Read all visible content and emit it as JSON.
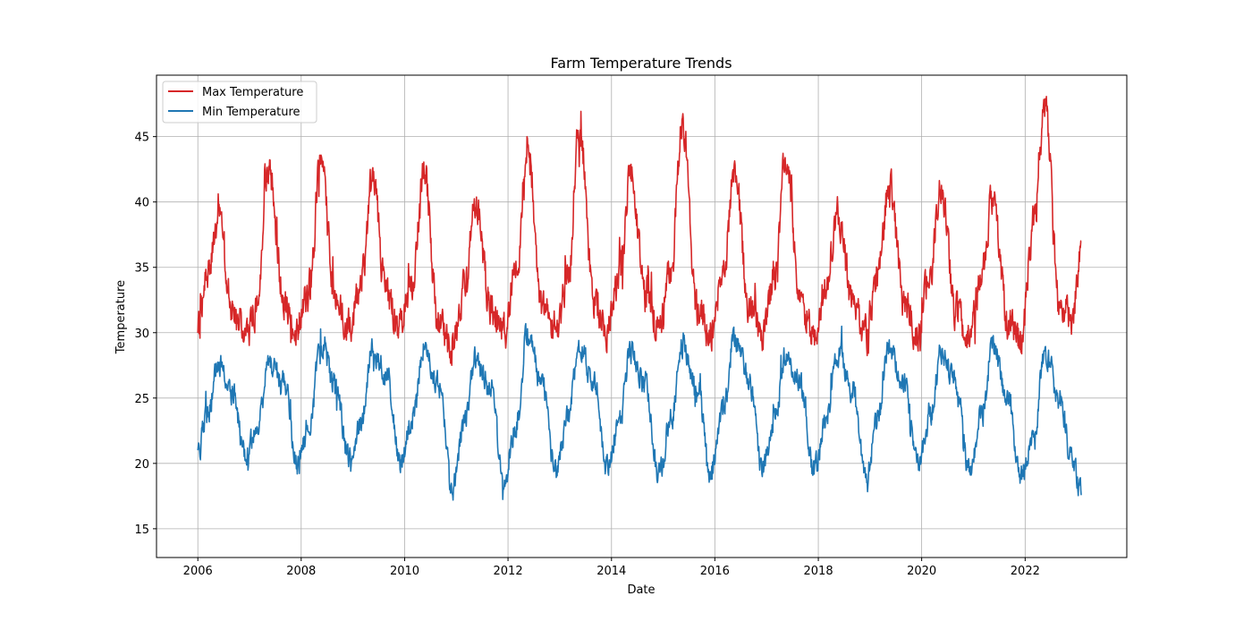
{
  "chart_data": {
    "type": "line",
    "title": "Farm Temperature Trends",
    "xlabel": "Date",
    "ylabel": "Temperature",
    "xlim": [
      "2005-03-15",
      "2023-12-20"
    ],
    "ylim": [
      12.8,
      49.7
    ],
    "x_ticks": [
      "2006",
      "2008",
      "2010",
      "2012",
      "2014",
      "2016",
      "2018",
      "2020",
      "2022"
    ],
    "y_ticks": [
      15,
      20,
      25,
      30,
      35,
      40,
      45
    ],
    "grid": true,
    "legend": "top-left",
    "x_range": [
      "2006-01-01",
      "2023-02-01"
    ],
    "series": [
      {
        "name": "Max Temperature",
        "color": "#d62728",
        "points": [
          [
            "2006-01-01",
            29.9
          ],
          [
            "2006-03-01",
            33.8
          ],
          [
            "2006-06-01",
            38.8
          ],
          [
            "2006-09-01",
            31.5
          ],
          [
            "2006-12-01",
            29.8
          ],
          [
            "2007-03-01",
            32.0
          ],
          [
            "2007-05-15",
            42.5
          ],
          [
            "2007-09-01",
            32.5
          ],
          [
            "2007-12-01",
            30.5
          ],
          [
            "2008-03-01",
            33.5
          ],
          [
            "2008-05-15",
            43.0
          ],
          [
            "2008-09-01",
            32.5
          ],
          [
            "2008-12-01",
            30.5
          ],
          [
            "2009-03-01",
            34.0
          ],
          [
            "2009-05-15",
            41.5
          ],
          [
            "2009-09-01",
            32.5
          ],
          [
            "2009-12-01",
            30.5
          ],
          [
            "2010-03-01",
            34.0
          ],
          [
            "2010-05-15",
            42.5
          ],
          [
            "2010-09-01",
            30.5
          ],
          [
            "2010-12-01",
            28.5
          ],
          [
            "2011-03-01",
            33.5
          ],
          [
            "2011-05-15",
            40.0
          ],
          [
            "2011-09-01",
            32.0
          ],
          [
            "2011-12-01",
            30.0
          ],
          [
            "2012-03-01",
            34.5
          ],
          [
            "2012-05-15",
            44.5
          ],
          [
            "2012-09-01",
            32.0
          ],
          [
            "2012-12-01",
            30.0
          ],
          [
            "2013-03-01",
            34.0
          ],
          [
            "2013-05-15",
            45.5
          ],
          [
            "2013-09-01",
            32.0
          ],
          [
            "2013-12-01",
            30.0
          ],
          [
            "2014-03-01",
            34.5
          ],
          [
            "2014-05-15",
            42.0
          ],
          [
            "2014-09-01",
            32.5
          ],
          [
            "2014-12-01",
            30.5
          ],
          [
            "2015-03-01",
            35.0
          ],
          [
            "2015-05-15",
            46.0
          ],
          [
            "2015-09-01",
            32.0
          ],
          [
            "2015-12-01",
            30.0
          ],
          [
            "2016-03-01",
            34.5
          ],
          [
            "2016-05-15",
            42.5
          ],
          [
            "2016-09-01",
            32.0
          ],
          [
            "2016-12-01",
            30.0
          ],
          [
            "2017-03-01",
            34.5
          ],
          [
            "2017-05-15",
            43.5
          ],
          [
            "2017-09-01",
            32.0
          ],
          [
            "2017-12-01",
            30.0
          ],
          [
            "2018-03-01",
            33.5
          ],
          [
            "2018-05-15",
            39.0
          ],
          [
            "2018-09-01",
            32.5
          ],
          [
            "2018-12-01",
            30.0
          ],
          [
            "2019-03-01",
            34.5
          ],
          [
            "2019-05-15",
            41.5
          ],
          [
            "2019-09-01",
            32.0
          ],
          [
            "2019-12-01",
            30.0
          ],
          [
            "2020-03-01",
            34.5
          ],
          [
            "2020-05-15",
            41.0
          ],
          [
            "2020-09-01",
            31.5
          ],
          [
            "2020-12-01",
            30.0
          ],
          [
            "2021-03-01",
            34.5
          ],
          [
            "2021-05-15",
            40.5
          ],
          [
            "2021-09-01",
            31.0
          ],
          [
            "2021-12-01",
            29.5
          ],
          [
            "2022-03-01",
            38.0
          ],
          [
            "2022-05-20",
            47.5
          ],
          [
            "2022-09-01",
            32.0
          ],
          [
            "2022-12-01",
            31.0
          ],
          [
            "2023-02-01",
            36.0
          ]
        ]
      },
      {
        "name": "Min Temperature",
        "color": "#1f77b4",
        "points": [
          [
            "2006-01-01",
            20.5
          ],
          [
            "2006-03-01",
            23.5
          ],
          [
            "2006-06-01",
            27.5
          ],
          [
            "2006-09-01",
            25.5
          ],
          [
            "2006-12-01",
            21.0
          ],
          [
            "2007-03-01",
            22.5
          ],
          [
            "2007-05-15",
            27.5
          ],
          [
            "2007-09-01",
            26.5
          ],
          [
            "2007-12-01",
            20.0
          ],
          [
            "2008-03-01",
            23.0
          ],
          [
            "2008-05-15",
            29.0
          ],
          [
            "2008-09-01",
            26.0
          ],
          [
            "2008-12-01",
            20.5
          ],
          [
            "2009-03-01",
            23.0
          ],
          [
            "2009-05-15",
            28.5
          ],
          [
            "2009-09-01",
            26.5
          ],
          [
            "2009-12-01",
            20.0
          ],
          [
            "2010-03-01",
            23.5
          ],
          [
            "2010-05-15",
            29.0
          ],
          [
            "2010-09-01",
            26.0
          ],
          [
            "2010-12-01",
            18.0
          ],
          [
            "2011-03-01",
            23.0
          ],
          [
            "2011-05-15",
            28.0
          ],
          [
            "2011-09-01",
            26.0
          ],
          [
            "2011-12-01",
            18.5
          ],
          [
            "2012-03-01",
            23.0
          ],
          [
            "2012-05-15",
            30.0
          ],
          [
            "2012-09-01",
            26.0
          ],
          [
            "2012-12-01",
            19.5
          ],
          [
            "2013-03-01",
            23.5
          ],
          [
            "2013-05-15",
            29.0
          ],
          [
            "2013-09-01",
            26.0
          ],
          [
            "2013-12-01",
            19.5
          ],
          [
            "2014-03-01",
            23.5
          ],
          [
            "2014-05-15",
            28.5
          ],
          [
            "2014-09-01",
            26.0
          ],
          [
            "2014-12-01",
            19.0
          ],
          [
            "2015-03-01",
            23.5
          ],
          [
            "2015-05-15",
            29.0
          ],
          [
            "2015-09-01",
            26.0
          ],
          [
            "2015-12-01",
            19.0
          ],
          [
            "2016-03-01",
            24.0
          ],
          [
            "2016-05-15",
            29.5
          ],
          [
            "2016-09-01",
            26.5
          ],
          [
            "2016-12-01",
            19.5
          ],
          [
            "2017-03-01",
            23.5
          ],
          [
            "2017-05-15",
            28.5
          ],
          [
            "2017-09-01",
            26.0
          ],
          [
            "2017-12-01",
            19.5
          ],
          [
            "2018-03-01",
            23.5
          ],
          [
            "2018-05-15",
            28.5
          ],
          [
            "2018-09-01",
            25.5
          ],
          [
            "2018-12-01",
            19.0
          ],
          [
            "2019-03-01",
            23.5
          ],
          [
            "2019-05-15",
            29.0
          ],
          [
            "2019-09-01",
            26.0
          ],
          [
            "2019-12-01",
            20.0
          ],
          [
            "2020-03-01",
            23.5
          ],
          [
            "2020-05-15",
            28.5
          ],
          [
            "2020-09-01",
            26.0
          ],
          [
            "2020-12-01",
            19.5
          ],
          [
            "2021-03-01",
            23.5
          ],
          [
            "2021-05-15",
            29.0
          ],
          [
            "2021-09-01",
            25.0
          ],
          [
            "2021-12-01",
            19.0
          ],
          [
            "2022-03-01",
            22.0
          ],
          [
            "2022-05-20",
            28.5
          ],
          [
            "2022-09-01",
            25.0
          ],
          [
            "2022-12-01",
            20.0
          ],
          [
            "2023-02-01",
            18.0
          ]
        ]
      }
    ]
  }
}
